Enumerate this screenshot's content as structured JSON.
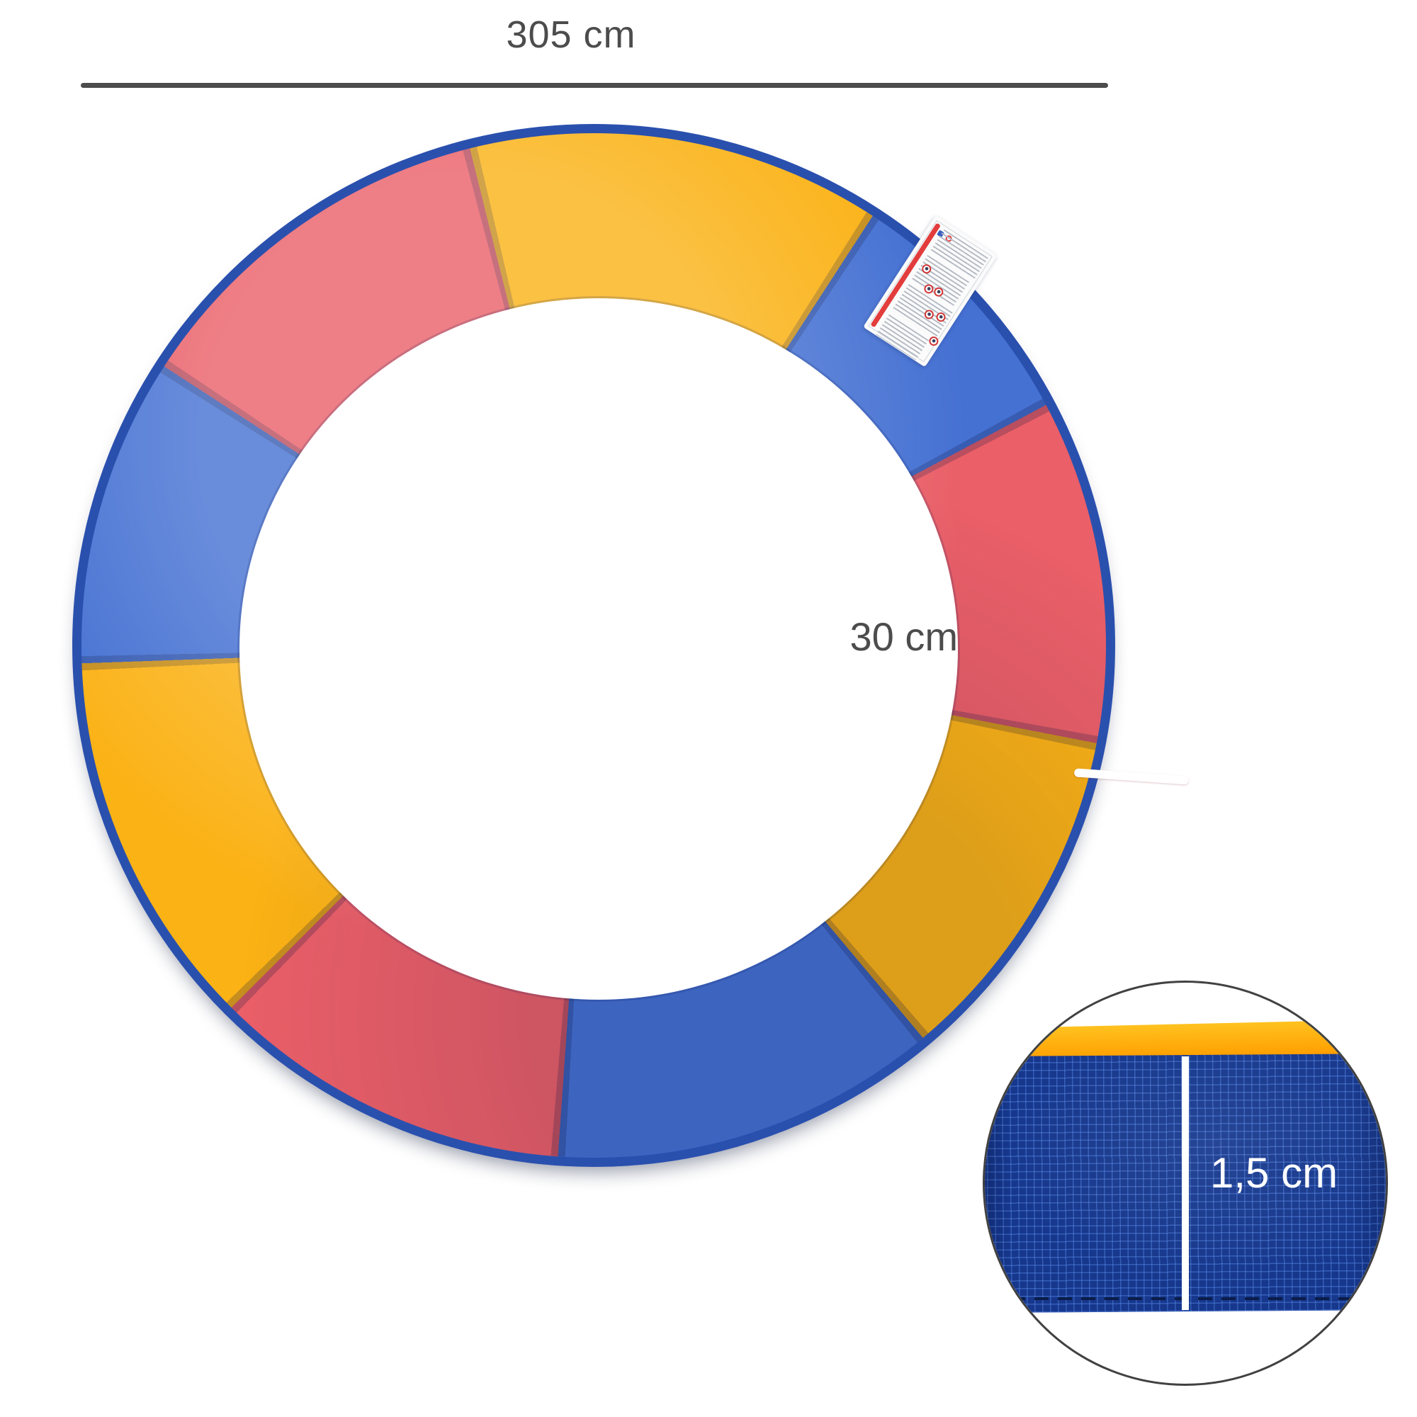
{
  "annotations": {
    "diameter": "305 cm",
    "pad_width": "30 cm",
    "thickness": "1,5 cm"
  },
  "colors": {
    "dim_gray": "#4c4c4c",
    "pad_red": "#ea5f68",
    "pad_blue": "#4571d3",
    "pad_yellow": "#fbb215",
    "skirt_blue": "#2a50ae",
    "label_red": "#e23c3c",
    "line_white": "#ffffff",
    "inset_border": "#414141",
    "inset_blue": "#16378c",
    "inset_grid": "rgba(96,146,240,0.42)",
    "inset_yellow_top": "#ffc21f",
    "inset_yellow_bottom": "#ff9e00",
    "stitch_navy": "#0a1c48"
  },
  "ring": {
    "segments": [
      {
        "color": "pad_yellow",
        "start": 0,
        "end": 33
      },
      {
        "color": "pad_blue",
        "start": 33,
        "end": 62
      },
      {
        "color": "pad_red",
        "start": 62,
        "end": 101
      },
      {
        "color": "pad_yellow",
        "start": 101,
        "end": 140
      },
      {
        "color": "pad_blue",
        "start": 140,
        "end": 184
      },
      {
        "color": "pad_red",
        "start": 184,
        "end": 225
      },
      {
        "color": "pad_yellow",
        "start": 225,
        "end": 268
      },
      {
        "color": "pad_blue",
        "start": 268,
        "end": 303
      },
      {
        "color": "pad_red",
        "start": 303,
        "end": 346
      },
      {
        "color": "pad_yellow",
        "start": 346,
        "end": 360
      }
    ]
  }
}
